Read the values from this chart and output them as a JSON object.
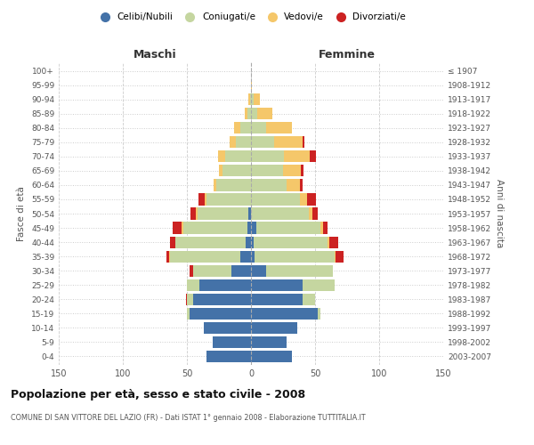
{
  "age_groups": [
    "0-4",
    "5-9",
    "10-14",
    "15-19",
    "20-24",
    "25-29",
    "30-34",
    "35-39",
    "40-44",
    "45-49",
    "50-54",
    "55-59",
    "60-64",
    "65-69",
    "70-74",
    "75-79",
    "80-84",
    "85-89",
    "90-94",
    "95-99",
    "100+"
  ],
  "birth_years": [
    "2003-2007",
    "1998-2002",
    "1993-1997",
    "1988-1992",
    "1983-1987",
    "1978-1982",
    "1973-1977",
    "1968-1972",
    "1963-1967",
    "1958-1962",
    "1953-1957",
    "1948-1952",
    "1943-1947",
    "1938-1942",
    "1933-1937",
    "1928-1932",
    "1923-1927",
    "1918-1922",
    "1913-1917",
    "1908-1912",
    "≤ 1907"
  ],
  "colors": {
    "celibi": "#4472a8",
    "coniugati": "#c5d6a0",
    "vedovi": "#f5c76a",
    "divorziati": "#cc2222"
  },
  "males": {
    "celibi": [
      35,
      30,
      37,
      48,
      45,
      40,
      15,
      8,
      4,
      3,
      2,
      0,
      0,
      0,
      0,
      0,
      0,
      0,
      0,
      0,
      0
    ],
    "coniugati": [
      0,
      0,
      0,
      2,
      5,
      10,
      30,
      55,
      55,
      50,
      40,
      35,
      27,
      22,
      20,
      12,
      8,
      3,
      1,
      0,
      0
    ],
    "vedovi": [
      0,
      0,
      0,
      0,
      0,
      0,
      0,
      1,
      0,
      1,
      1,
      1,
      2,
      3,
      6,
      5,
      5,
      2,
      1,
      0,
      0
    ],
    "divorziati": [
      0,
      0,
      0,
      0,
      1,
      0,
      3,
      2,
      4,
      7,
      4,
      5,
      0,
      0,
      0,
      0,
      0,
      0,
      0,
      0,
      0
    ]
  },
  "females": {
    "nubili": [
      32,
      28,
      36,
      52,
      40,
      40,
      12,
      3,
      2,
      4,
      0,
      0,
      0,
      0,
      0,
      0,
      0,
      0,
      0,
      0,
      0
    ],
    "coniugate": [
      0,
      0,
      0,
      2,
      10,
      25,
      52,
      62,
      58,
      50,
      45,
      38,
      28,
      25,
      26,
      18,
      12,
      5,
      2,
      0,
      0
    ],
    "vedove": [
      0,
      0,
      0,
      0,
      0,
      0,
      0,
      1,
      1,
      2,
      3,
      6,
      10,
      14,
      20,
      22,
      20,
      12,
      5,
      1,
      0
    ],
    "divorziate": [
      0,
      0,
      0,
      0,
      0,
      0,
      0,
      6,
      7,
      4,
      4,
      7,
      2,
      2,
      5,
      2,
      0,
      0,
      0,
      0,
      0
    ]
  },
  "title": "Popolazione per età, sesso e stato civile - 2008",
  "subtitle": "COMUNE DI SAN VITTORE DEL LAZIO (FR) - Dati ISTAT 1° gennaio 2008 - Elaborazione TUTTITALIA.IT",
  "ylabel_left": "Fasce di età",
  "ylabel_right": "Anni di nascita",
  "xlim": 150,
  "background_color": "#ffffff",
  "grid_color": "#cccccc"
}
